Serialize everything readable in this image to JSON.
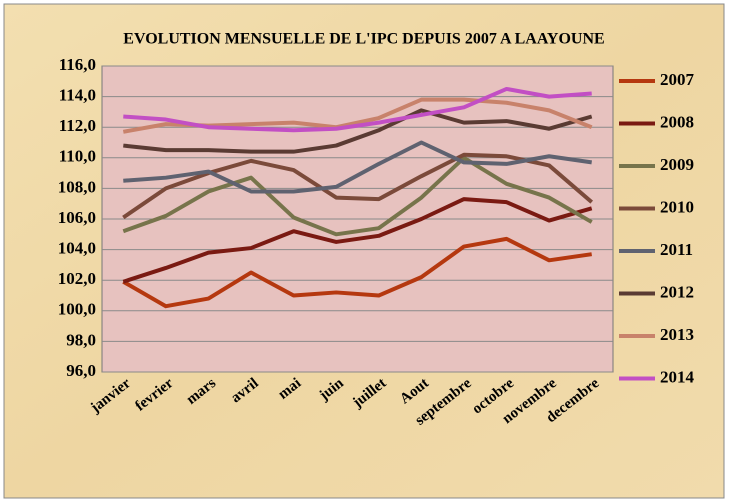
{
  "chart_data": {
    "type": "line",
    "title": "EVOLUTION MENSUELLE DE L'IPC DEPUIS 2007 A LAAYOUNE",
    "categories": [
      "janvier",
      "fevrier",
      "mars",
      "avril",
      "mai",
      "juin",
      "juillet",
      "Aout",
      "septembre",
      "octobre",
      "novembre",
      "decembre"
    ],
    "series": [
      {
        "name": "2007",
        "color": "#b5380f",
        "values": [
          101.9,
          100.3,
          100.8,
          102.5,
          101.0,
          101.2,
          101.0,
          102.2,
          104.2,
          104.7,
          103.3,
          103.7
        ]
      },
      {
        "name": "2008",
        "color": "#7a1a12",
        "values": [
          101.9,
          102.8,
          103.8,
          104.1,
          105.2,
          104.5,
          104.9,
          106.0,
          107.3,
          107.1,
          105.9,
          106.7
        ]
      },
      {
        "name": "2009",
        "color": "#77744b",
        "values": [
          105.2,
          106.2,
          107.8,
          108.7,
          106.1,
          105.0,
          105.4,
          107.4,
          110.0,
          108.3,
          107.4,
          105.8
        ]
      },
      {
        "name": "2010",
        "color": "#7b4a3a",
        "values": [
          106.1,
          108.0,
          109.0,
          109.8,
          109.2,
          107.4,
          107.3,
          108.8,
          110.2,
          110.1,
          109.5,
          107.1
        ]
      },
      {
        "name": "2011",
        "color": "#5f6270",
        "values": [
          108.5,
          108.7,
          109.1,
          107.8,
          107.8,
          108.1,
          109.6,
          111.0,
          109.7,
          109.6,
          110.1,
          109.7
        ]
      },
      {
        "name": "2012",
        "color": "#5a3b33",
        "values": [
          110.8,
          110.5,
          110.5,
          110.4,
          110.4,
          110.8,
          111.8,
          113.1,
          112.3,
          112.4,
          111.9,
          112.7
        ]
      },
      {
        "name": "2013",
        "color": "#c8826b",
        "values": [
          111.7,
          112.2,
          112.1,
          112.2,
          112.3,
          112.0,
          112.6,
          113.8,
          113.8,
          113.6,
          113.1,
          112.0
        ]
      },
      {
        "name": "2014",
        "color": "#c24fc4",
        "values": [
          112.7,
          112.5,
          112.0,
          111.9,
          111.8,
          111.9,
          112.3,
          112.8,
          113.3,
          114.5,
          114.0,
          114.2
        ]
      }
    ],
    "ylim": [
      96,
      116
    ],
    "yticks": [
      {
        "value": 96,
        "label": "96,0"
      },
      {
        "value": 98,
        "label": "98,0"
      },
      {
        "value": 100,
        "label": "100,0"
      },
      {
        "value": 102,
        "label": "102,0"
      },
      {
        "value": 104,
        "label": "104,0"
      },
      {
        "value": 106,
        "label": "106,0"
      },
      {
        "value": 108,
        "label": "108,0"
      },
      {
        "value": 110,
        "label": "110,0"
      },
      {
        "value": 112,
        "label": "112,0"
      },
      {
        "value": 114,
        "label": "114,0"
      },
      {
        "value": 116,
        "label": "116,0"
      }
    ],
    "grid": true,
    "legend": "right"
  }
}
